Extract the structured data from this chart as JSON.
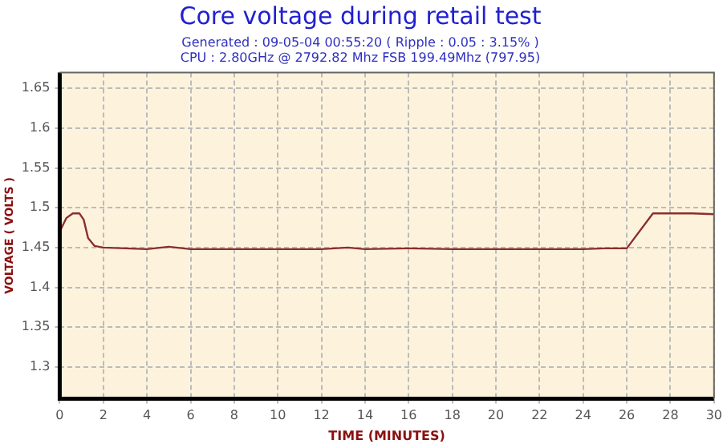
{
  "chart_data": {
    "type": "line",
    "title": "Core voltage during retail test",
    "subtitle": "Generated : 09-05-04 00:55:20 ( Ripple : 0.05 : 3.15% )\nCPU : 2.80GHz @ 2792.82 Mhz FSB 199.49Mhz (797.95)",
    "xlabel": "TIME (MINUTES)",
    "ylabel": "VOLTAGE ( VOLTS )",
    "x": [
      0,
      0.3,
      0.6,
      0.9,
      1.1,
      1.3,
      1.6,
      2,
      3,
      4,
      5,
      6,
      8,
      10,
      12,
      13.2,
      14,
      16,
      18,
      20,
      22,
      24,
      25,
      26,
      27.2,
      28,
      29,
      30
    ],
    "series": [
      {
        "color": "#8b2e2e",
        "values": [
          1.47,
          1.487,
          1.493,
          1.493,
          1.485,
          1.462,
          1.452,
          1.45,
          1.449,
          1.448,
          1.451,
          1.448,
          1.448,
          1.448,
          1.448,
          1.45,
          1.448,
          1.449,
          1.448,
          1.448,
          1.448,
          1.448,
          1.449,
          1.449,
          1.493,
          1.493,
          1.493,
          1.492
        ]
      }
    ],
    "xlim": [
      0,
      30
    ],
    "xticks": [
      0,
      2,
      4,
      6,
      8,
      10,
      12,
      14,
      16,
      18,
      20,
      22,
      24,
      26,
      28,
      30
    ],
    "ylim": [
      1.26,
      1.67
    ],
    "yticks": [
      1.3,
      1.35,
      1.4,
      1.45,
      1.5,
      1.55,
      1.6,
      1.65
    ],
    "grid": true,
    "legend": false,
    "marker": "none",
    "line_style": "solid"
  }
}
